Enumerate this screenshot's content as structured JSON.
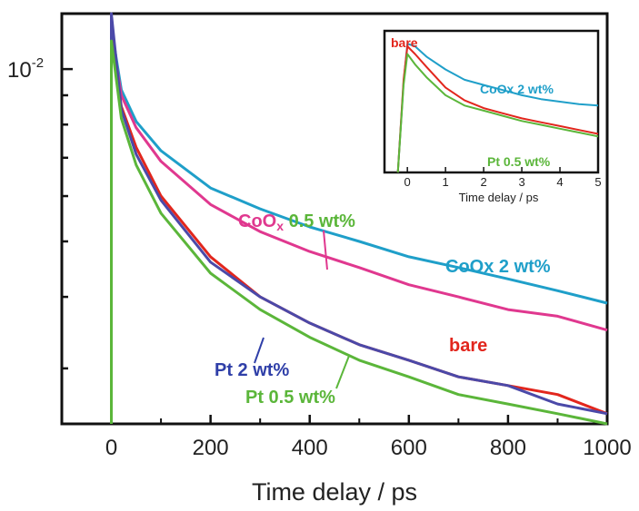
{
  "chart_data": [
    {
      "type": "line",
      "xlabel": "Time delay / ps",
      "ylabel": "",
      "xlim": [
        -100,
        1000
      ],
      "ylog": true,
      "ylim": [
        0.0024,
        0.0125
      ],
      "x_ticks": [
        "0",
        "200",
        "400",
        "600",
        "800",
        "1000"
      ],
      "y_tick_label": {
        "base": "10",
        "exp": "-2"
      },
      "series": [
        {
          "name": "CoOx 2 wt%",
          "color": "#1f9fc9",
          "x": [
            0,
            20,
            50,
            100,
            200,
            300,
            400,
            500,
            600,
            700,
            800,
            900,
            1000
          ],
          "y": [
            0.0118,
            0.0092,
            0.0081,
            0.0072,
            0.0062,
            0.0057,
            0.0053,
            0.005,
            0.0047,
            0.0045,
            0.0043,
            0.0041,
            0.0039
          ]
        },
        {
          "name": "CoOx 0.5 wt%",
          "color": "#e0388f",
          "x": [
            0,
            20,
            50,
            100,
            200,
            300,
            400,
            500,
            600,
            700,
            800,
            900,
            1000
          ],
          "y": [
            0.0116,
            0.009,
            0.0079,
            0.0069,
            0.0058,
            0.0052,
            0.0048,
            0.0045,
            0.0042,
            0.004,
            0.0038,
            0.0037,
            0.0035
          ]
        },
        {
          "name": "bare",
          "color": "#e2261d",
          "x": [
            0,
            20,
            50,
            100,
            200,
            300,
            400,
            500,
            600,
            700,
            800,
            900,
            1000
          ],
          "y": [
            0.0114,
            0.0086,
            0.0073,
            0.006,
            0.0047,
            0.004,
            0.0036,
            0.0033,
            0.0031,
            0.0029,
            0.0028,
            0.0027,
            0.0025
          ]
        },
        {
          "name": "Pt 2 wt%",
          "color": "#4b49a8",
          "x": [
            0,
            20,
            50,
            100,
            200,
            300,
            400,
            500,
            600,
            700,
            800,
            900,
            1000
          ],
          "y": [
            0.0125,
            0.0085,
            0.0071,
            0.0059,
            0.0046,
            0.004,
            0.0036,
            0.0033,
            0.0031,
            0.0029,
            0.0028,
            0.0026,
            0.0025
          ]
        },
        {
          "name": "Pt 0.5 wt%",
          "color": "#5bb63a",
          "x": [
            0,
            20,
            50,
            100,
            200,
            300,
            400,
            500,
            600,
            700,
            800,
            900,
            1000
          ],
          "y": [
            0.0112,
            0.0082,
            0.0068,
            0.0056,
            0.0044,
            0.0038,
            0.0034,
            0.0031,
            0.0029,
            0.0027,
            0.0026,
            0.0025,
            0.0024
          ]
        }
      ],
      "annotations": [
        {
          "text": "CoOx 0.5 wt%",
          "color": "#e0388f",
          "parts": [
            {
              "t": "CoO",
              "c": "#e0388f"
            },
            {
              "t": "x",
              "c": "#e0388f"
            },
            {
              "t": " 0.5 wt%",
              "c": "#5bb63a"
            }
          ]
        },
        {
          "text": "CoOx 2 wt%",
          "color": "#1f9fc9"
        },
        {
          "text": "bare",
          "color": "#e2261d"
        },
        {
          "text": "Pt 2 wt%",
          "color": "#2f3fa8"
        },
        {
          "text": "Pt 0.5 wt%",
          "color": "#5bb63a"
        }
      ]
    },
    {
      "type": "line",
      "xlabel": "Time delay / ps",
      "xlim": [
        -0.6,
        5
      ],
      "ylim": [
        0,
        1.1
      ],
      "x_ticks": [
        "0",
        "1",
        "2",
        "3",
        "4",
        "5"
      ],
      "series": [
        {
          "name": "CoOx 2 wt%",
          "color": "#1f9fc9",
          "x": [
            -0.25,
            -0.1,
            0.0,
            0.2,
            0.5,
            1.0,
            1.5,
            2.0,
            2.5,
            3.0,
            3.5,
            4.0,
            4.5,
            5.0
          ],
          "y": [
            0.0,
            0.7,
            1.0,
            0.98,
            0.9,
            0.8,
            0.72,
            0.68,
            0.64,
            0.6,
            0.57,
            0.55,
            0.53,
            0.52
          ]
        },
        {
          "name": "bare",
          "color": "#e2261d",
          "x": [
            -0.25,
            -0.1,
            0.0,
            0.2,
            0.5,
            1.0,
            1.5,
            2.0,
            2.5,
            3.0,
            3.5,
            4.0,
            4.5,
            5.0
          ],
          "y": [
            0.0,
            0.72,
            0.98,
            0.92,
            0.82,
            0.66,
            0.56,
            0.5,
            0.46,
            0.42,
            0.39,
            0.36,
            0.33,
            0.3
          ]
        },
        {
          "name": "Pt 0.5 wt%",
          "color": "#5bb63a",
          "x": [
            -0.25,
            -0.1,
            0.0,
            0.2,
            0.5,
            1.0,
            1.5,
            2.0,
            2.5,
            3.0,
            3.5,
            4.0,
            4.5,
            5.0
          ],
          "y": [
            0.0,
            0.68,
            0.92,
            0.84,
            0.74,
            0.6,
            0.52,
            0.48,
            0.44,
            0.4,
            0.37,
            0.34,
            0.31,
            0.28
          ]
        }
      ],
      "annotations": [
        {
          "text": "bare",
          "color": "#e2261d"
        },
        {
          "text": "CoOx 2 wt%",
          "color": "#1f9fc9"
        },
        {
          "text": "Pt 0.5 wt%",
          "color": "#5bb63a"
        }
      ]
    }
  ]
}
